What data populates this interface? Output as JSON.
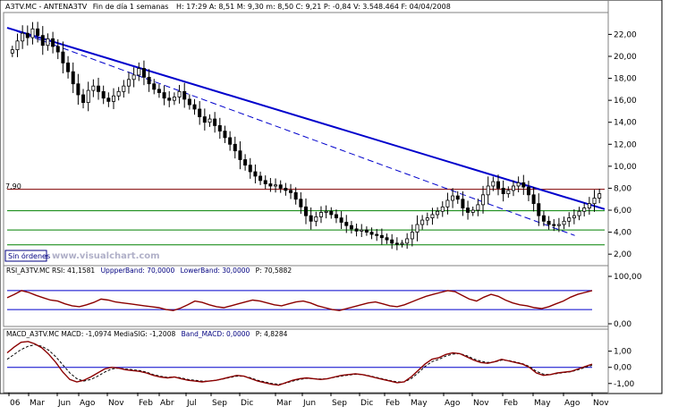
{
  "header": {
    "symbol": "A3TV.MC - ANTENA3TV",
    "period": "Fin de día 1 semanas",
    "ohlc": "H: 17:29  A: 8,51  M: 9,30  m: 8,50  C: 9,21  P: -0,84  V: 3.548.464  F: 04/04/2008"
  },
  "main": {
    "price_label": "7,90",
    "sin_ordenes": "Sin órdenes",
    "watermark": "www.visualchart.com",
    "y_ticks": [
      "22,00",
      "20,00",
      "18,00",
      "16,00",
      "14,00",
      "12,00",
      "10,00",
      "8,00",
      "6,00",
      "4,00",
      "2,00"
    ]
  },
  "rsi": {
    "header_a": "RSI_A3TV.MC  RSI: 41,1581",
    "header_b": "UppperBand: 70,0000",
    "header_c": "LowerBand: 30,0000",
    "header_d": "P: 70,5882",
    "y_ticks": [
      "100,00",
      "0,00"
    ]
  },
  "macd": {
    "header_a": "MACD_A3TV.MC  MACD: -1,0974  MediaSIG: -1,2008",
    "header_b": "Band_MACD: 0,0000",
    "header_c": "P: 4,8284",
    "y_ticks": [
      "1,00",
      "0,00",
      "-1,00"
    ]
  },
  "x_labels": [
    "06",
    "Mar",
    "Jun",
    "Ago",
    "Nov",
    "Feb",
    "Abr",
    "Jul",
    "Sep",
    "Dic",
    "Mar",
    "Jun",
    "Sep",
    "Dic",
    "Feb",
    "May",
    "Ago",
    "Nov",
    "Feb",
    "May",
    "Ago",
    "Nov"
  ],
  "colors": {
    "blue": "#0000cc",
    "darkred": "#800000",
    "green": "#008000",
    "maroon": "#8b0000"
  },
  "chart_data": [
    {
      "type": "candlestick",
      "title": "A3TV.MC - ANTENA3TV",
      "ylim": [
        1.2,
        23.5
      ],
      "y_ticks": [
        22,
        20,
        18,
        16,
        14,
        12,
        10,
        8,
        6,
        4,
        2
      ],
      "horizontal_levels": [
        {
          "value": 7.9,
          "color": "darkred"
        },
        {
          "value": 5.95,
          "color": "green"
        },
        {
          "value": 4.2,
          "color": "green"
        },
        {
          "value": 2.85,
          "color": "green"
        }
      ],
      "trendlines": [
        {
          "from": [
            0.0,
            22.6
          ],
          "to": [
            1.0,
            6.1
          ],
          "style": "solid",
          "color": "blue"
        },
        {
          "from": [
            0.0,
            22.6
          ],
          "to": [
            0.95,
            3.7
          ],
          "style": "dashed",
          "color": "blue"
        }
      ],
      "closes": [
        20.6,
        21.4,
        22.1,
        21.7,
        22.5,
        21.9,
        21.0,
        21.6,
        20.9,
        20.4,
        19.4,
        18.6,
        17.5,
        16.5,
        15.8,
        16.9,
        17.3,
        16.8,
        16.2,
        15.9,
        16.4,
        16.8,
        17.3,
        17.9,
        18.3,
        18.9,
        18.1,
        17.5,
        17.0,
        16.7,
        16.2,
        16.0,
        16.3,
        16.8,
        16.1,
        15.6,
        15.2,
        14.5,
        14.0,
        14.3,
        13.7,
        13.2,
        12.6,
        12.0,
        11.4,
        10.6,
        10.1,
        9.5,
        9.1,
        8.7,
        8.4,
        8.2,
        8.3,
        8.0,
        7.8,
        7.6,
        7.0,
        6.3,
        5.5,
        5.0,
        5.4,
        5.8,
        5.9,
        5.6,
        5.3,
        4.9,
        4.6,
        4.3,
        4.1,
        4.2,
        4.0,
        3.8,
        3.7,
        3.5,
        3.3,
        3.0,
        2.9,
        3.0,
        3.4,
        4.0,
        4.7,
        5.1,
        5.3,
        5.6,
        5.9,
        6.3,
        6.9,
        7.3,
        7.0,
        6.2,
        5.8,
        6.0,
        6.5,
        7.4,
        8.2,
        8.6,
        8.0,
        7.5,
        7.8,
        8.2,
        8.5,
        8.1,
        7.4,
        6.6,
        5.5,
        5.0,
        4.7,
        4.6,
        4.7,
        5.0,
        5.3,
        5.5,
        5.9,
        6.2,
        6.6,
        7.1,
        7.5
      ],
      "x_labels": [
        "06",
        "Mar",
        "Jun",
        "Ago",
        "Nov",
        "Feb",
        "Abr",
        "Jul",
        "Sep",
        "Dic",
        "Mar",
        "Jun",
        "Sep",
        "Dic",
        "Feb",
        "May",
        "Ago",
        "Nov",
        "Feb",
        "May",
        "Ago",
        "Nov"
      ]
    },
    {
      "type": "line",
      "title": "RSI_A3TV.MC",
      "ylim": [
        0,
        100
      ],
      "bands": [
        70,
        30
      ],
      "series": [
        {
          "name": "RSI",
          "values": [
            55,
            62,
            70,
            66,
            60,
            55,
            50,
            48,
            42,
            38,
            36,
            40,
            45,
            52,
            50,
            46,
            44,
            42,
            40,
            38,
            36,
            34,
            30,
            28,
            33,
            40,
            48,
            45,
            40,
            36,
            34,
            38,
            42,
            46,
            50,
            48,
            44,
            40,
            38,
            42,
            46,
            48,
            44,
            38,
            34,
            30,
            28,
            32,
            36,
            40,
            44,
            46,
            42,
            38,
            36,
            40,
            46,
            52,
            58,
            62,
            66,
            70,
            68,
            60,
            52,
            48,
            56,
            62,
            58,
            50,
            44,
            40,
            38,
            34,
            32,
            36,
            42,
            48,
            56,
            62,
            66,
            70
          ]
        }
      ]
    },
    {
      "type": "line",
      "title": "MACD_A3TV.MC",
      "ylim": [
        -1.4,
        1.7
      ],
      "band": 0,
      "series": [
        {
          "name": "MACD",
          "values": [
            0.9,
            1.25,
            1.55,
            1.6,
            1.45,
            1.2,
            0.8,
            0.3,
            -0.3,
            -0.75,
            -0.9,
            -0.8,
            -0.6,
            -0.35,
            -0.1,
            0.0,
            -0.05,
            -0.15,
            -0.2,
            -0.25,
            -0.35,
            -0.5,
            -0.6,
            -0.65,
            -0.6,
            -0.7,
            -0.8,
            -0.85,
            -0.9,
            -0.85,
            -0.8,
            -0.7,
            -0.6,
            -0.5,
            -0.55,
            -0.7,
            -0.85,
            -0.95,
            -1.05,
            -1.1,
            -0.95,
            -0.8,
            -0.7,
            -0.65,
            -0.7,
            -0.75,
            -0.7,
            -0.6,
            -0.5,
            -0.45,
            -0.4,
            -0.45,
            -0.55,
            -0.65,
            -0.75,
            -0.85,
            -0.95,
            -0.9,
            -0.6,
            -0.2,
            0.2,
            0.5,
            0.6,
            0.8,
            0.9,
            0.85,
            0.65,
            0.45,
            0.3,
            0.25,
            0.35,
            0.5,
            0.4,
            0.3,
            0.2,
            0.0,
            -0.35,
            -0.5,
            -0.45,
            -0.35,
            -0.3,
            -0.25,
            -0.1,
            0.05,
            0.2
          ]
        },
        {
          "name": "MediaSIG",
          "values": [
            0.5,
            0.8,
            1.1,
            1.3,
            1.4,
            1.3,
            1.05,
            0.65,
            0.15,
            -0.35,
            -0.7,
            -0.85,
            -0.75,
            -0.55,
            -0.3,
            -0.1,
            -0.05,
            -0.1,
            -0.15,
            -0.2,
            -0.3,
            -0.45,
            -0.55,
            -0.62,
            -0.6,
            -0.65,
            -0.75,
            -0.8,
            -0.85,
            -0.85,
            -0.8,
            -0.72,
            -0.63,
            -0.55,
            -0.55,
            -0.65,
            -0.8,
            -0.9,
            -1.0,
            -1.05,
            -0.98,
            -0.85,
            -0.75,
            -0.68,
            -0.7,
            -0.72,
            -0.7,
            -0.62,
            -0.54,
            -0.48,
            -0.43,
            -0.45,
            -0.52,
            -0.62,
            -0.72,
            -0.82,
            -0.9,
            -0.9,
            -0.7,
            -0.35,
            0.05,
            0.35,
            0.5,
            0.7,
            0.82,
            0.85,
            0.72,
            0.52,
            0.38,
            0.3,
            0.33,
            0.45,
            0.42,
            0.33,
            0.23,
            0.05,
            -0.25,
            -0.42,
            -0.45,
            -0.38,
            -0.32,
            -0.27,
            -0.15,
            0.0,
            0.12
          ]
        }
      ]
    }
  ]
}
